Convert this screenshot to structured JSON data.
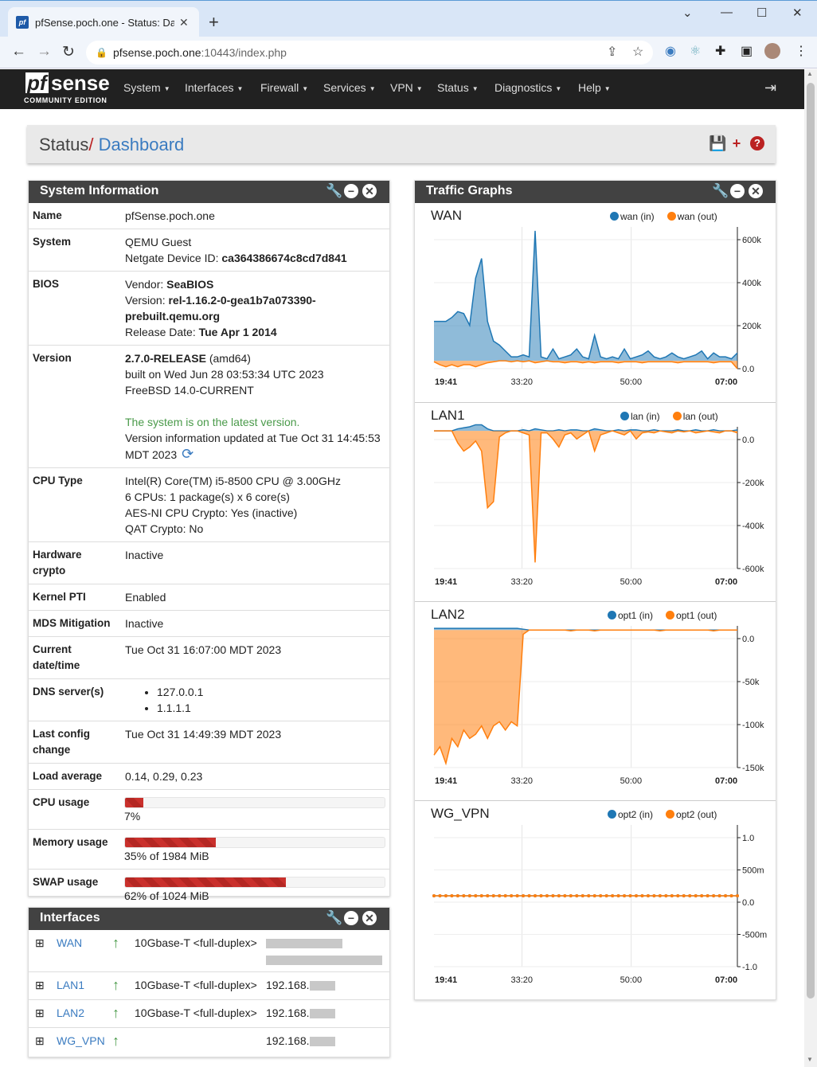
{
  "browser": {
    "tab_title": "pfSense.poch.one - Status: Dashb",
    "url_host": "pfsense.poch.one",
    "url_path": ":10443/index.php"
  },
  "nav": {
    "logo_pf": "pf",
    "logo_sense": "sense",
    "logo_edition": "COMMUNITY EDITION",
    "items": [
      "System",
      "Interfaces",
      "Firewall",
      "Services",
      "VPN",
      "Status",
      "Diagnostics",
      "Help"
    ]
  },
  "breadcrumb": {
    "section": "Status",
    "separator": "/",
    "page": "Dashboard"
  },
  "system_info": {
    "title": "System Information",
    "rows": {
      "name": {
        "key": "Name",
        "value": "pfSense.poch.one"
      },
      "system": {
        "key": "System",
        "line1": "QEMU Guest",
        "device_label": "Netgate Device ID:",
        "device_id": "ca364386674c8cd7d841"
      },
      "bios": {
        "key": "BIOS",
        "vendor_label": "Vendor:",
        "vendor": "SeaBIOS",
        "version_label": "Version:",
        "version_a": "rel-1.16.2-0-gea1b7a073390-",
        "version_b": "prebuilt.qemu.org",
        "date_label": "Release Date:",
        "date": "Tue Apr 1 2014"
      },
      "version": {
        "key": "Version",
        "release": "2.7.0-RELEASE",
        "arch": "(amd64)",
        "built": "built on Wed Jun 28 03:53:34 UTC 2023",
        "os": "FreeBSD 14.0-CURRENT",
        "status": "The system is on the latest version.",
        "updated_a": "Version information updated at Tue Oct 31 14:45:53",
        "updated_b": "MDT 2023"
      },
      "cpu_type": {
        "key": "CPU Type",
        "l1": "Intel(R) Core(TM) i5-8500 CPU @ 3.00GHz",
        "l2": "6 CPUs: 1 package(s) x 6 core(s)",
        "l3": "AES-NI CPU Crypto: Yes (inactive)",
        "l4": "QAT Crypto: No"
      },
      "hw_crypto": {
        "key_a": "Hardware",
        "key_b": "crypto",
        "value": "Inactive"
      },
      "kernel_pti": {
        "key": "Kernel PTI",
        "value": "Enabled"
      },
      "mds": {
        "key": "MDS Mitigation",
        "value": "Inactive"
      },
      "datetime": {
        "key_a": "Current",
        "key_b": "date/time",
        "value": "Tue Oct 31 16:07:00 MDT 2023"
      },
      "dns": {
        "key": "DNS server(s)",
        "servers": [
          "127.0.0.1",
          "1.1.1.1"
        ]
      },
      "last_config": {
        "key_a": "Last config",
        "key_b": "change",
        "value": "Tue Oct 31 14:49:39 MDT 2023"
      },
      "load": {
        "key": "Load average",
        "value": "0.14, 0.29, 0.23"
      },
      "cpu_usage": {
        "key": "CPU usage",
        "percent": 7,
        "label": "7%"
      },
      "memory": {
        "key": "Memory usage",
        "percent": 35,
        "label": "35% of 1984 MiB"
      },
      "swap": {
        "key": "SWAP usage",
        "percent": 62,
        "label": "62% of 1024 MiB"
      }
    }
  },
  "interfaces": {
    "title": "Interfaces",
    "rows": [
      {
        "name": "WAN",
        "media": "10Gbase-T <full-duplex>",
        "ip": ""
      },
      {
        "name": "LAN1",
        "media": "10Gbase-T <full-duplex>",
        "ip": "192.168."
      },
      {
        "name": "LAN2",
        "media": "10Gbase-T <full-duplex>",
        "ip": "192.168."
      },
      {
        "name": "WG_VPN",
        "media": "",
        "ip": "192.168."
      }
    ]
  },
  "traffic": {
    "title": "Traffic Graphs",
    "x_labels": [
      "19:41",
      "33:20",
      "50:00",
      "07:00"
    ],
    "colors": {
      "in": "#1f77b4",
      "out": "#ff7f0e"
    }
  },
  "chart_data": [
    {
      "type": "area",
      "title": "WAN",
      "series": [
        {
          "name": "wan (in)",
          "values": [
            200000,
            200000,
            200000,
            220000,
            250000,
            240000,
            180000,
            420000,
            520000,
            200000,
            100000,
            80000,
            50000,
            20000,
            20000,
            30000,
            20000,
            660000,
            20000,
            10000,
            60000,
            10000,
            20000,
            30000,
            60000,
            20000,
            10000,
            130000,
            20000,
            10000,
            20000,
            10000,
            60000,
            10000,
            20000,
            30000,
            50000,
            20000,
            10000,
            20000,
            40000,
            20000,
            10000,
            20000,
            30000,
            50000,
            10000,
            40000,
            20000,
            20000,
            10000,
            40000
          ]
        },
        {
          "name": "wan (out)",
          "values": [
            -5000,
            -20000,
            -30000,
            -20000,
            -30000,
            -20000,
            -20000,
            -30000,
            -20000,
            -10000,
            -5000,
            0,
            0,
            -5000,
            0,
            -5000,
            0,
            -10000,
            -5000,
            0,
            -5000,
            -5000,
            -10000,
            -5000,
            -5000,
            -10000,
            -5000,
            -10000,
            -5000,
            -5000,
            -5000,
            -10000,
            -5000,
            -5000,
            -5000,
            -10000,
            -5000,
            -5000,
            -5000,
            -5000,
            -5000,
            -10000,
            -5000,
            -5000,
            -5000,
            -5000,
            -5000,
            -10000,
            -5000,
            -5000,
            -5000,
            -40000
          ]
        }
      ],
      "y_ticks": [
        "600k",
        "400k",
        "200k",
        "0.0"
      ],
      "ylim": [
        -40000,
        680000
      ]
    },
    {
      "type": "area",
      "title": "LAN1",
      "series": [
        {
          "name": "lan (in)",
          "values": [
            0,
            0,
            0,
            0,
            10000,
            15000,
            20000,
            30000,
            30000,
            10000,
            0,
            0,
            0,
            0,
            0,
            5000,
            0,
            10000,
            5000,
            0,
            0,
            5000,
            0,
            5000,
            5000,
            0,
            0,
            10000,
            5000,
            0,
            0,
            5000,
            0,
            5000,
            5000,
            0,
            0,
            5000,
            0,
            0,
            0,
            5000,
            0,
            0,
            5000,
            0,
            0,
            5000,
            0,
            0,
            0,
            5000
          ]
        },
        {
          "name": "lan (out)",
          "values": [
            0,
            0,
            0,
            0,
            -60000,
            -100000,
            -80000,
            -50000,
            -100000,
            -380000,
            -350000,
            -30000,
            -10000,
            0,
            0,
            -10000,
            -20000,
            -650000,
            -10000,
            -10000,
            -40000,
            -80000,
            -20000,
            -10000,
            -40000,
            -20000,
            0,
            -100000,
            -20000,
            -10000,
            0,
            -10000,
            -20000,
            0,
            -40000,
            -10000,
            -5000,
            -10000,
            0,
            -5000,
            -10000,
            0,
            -5000,
            0,
            -10000,
            -5000,
            0,
            -5000,
            -10000,
            0,
            0,
            -10000
          ]
        }
      ],
      "y_ticks": [
        "0.0",
        "-200k",
        "-400k",
        "-600k"
      ],
      "ylim": [
        -680000,
        20000
      ]
    },
    {
      "type": "area",
      "title": "LAN2",
      "series": [
        {
          "name": "opt1 (in)",
          "values": [
            2000,
            2000,
            2000,
            2000,
            2000,
            2000,
            2000,
            2000,
            2000,
            2000,
            2000,
            2000,
            2000,
            2000,
            2000,
            1000,
            0,
            0,
            0,
            0,
            0,
            0,
            0,
            0,
            0,
            0,
            0,
            0,
            0,
            0,
            0,
            0,
            0,
            0,
            0,
            0,
            0,
            0,
            0,
            0,
            0,
            0,
            0,
            0,
            0,
            0,
            0,
            0,
            0,
            0,
            0,
            0
          ]
        },
        {
          "name": "opt1 (out)",
          "values": [
            -150000,
            -140000,
            -160000,
            -130000,
            -140000,
            -120000,
            -130000,
            -125000,
            -115000,
            -130000,
            -115000,
            -110000,
            -120000,
            -110000,
            -115000,
            -5000,
            0,
            0,
            0,
            0,
            0,
            0,
            0,
            -1000,
            0,
            0,
            0,
            -1000,
            0,
            0,
            0,
            0,
            0,
            0,
            0,
            0,
            0,
            0,
            -1000,
            0,
            0,
            0,
            0,
            0,
            0,
            0,
            0,
            -1000,
            0,
            0,
            0,
            0
          ]
        }
      ],
      "y_ticks": [
        "0.0",
        "-50k",
        "-100k",
        "-150k"
      ],
      "ylim": [
        -165000,
        5000
      ]
    },
    {
      "type": "line",
      "title": "WG_VPN",
      "series": [
        {
          "name": "opt2 (in)",
          "values": [
            0,
            0,
            0,
            0,
            0,
            0,
            0,
            0,
            0,
            0,
            0,
            0,
            0,
            0,
            0,
            0,
            0,
            0,
            0,
            0,
            0,
            0,
            0,
            0,
            0,
            0,
            0,
            0,
            0,
            0,
            0,
            0,
            0,
            0,
            0,
            0,
            0,
            0,
            0,
            0,
            0,
            0,
            0,
            0,
            0,
            0,
            0,
            0,
            0,
            0,
            0,
            0
          ]
        },
        {
          "name": "opt2 (out)",
          "values": [
            0,
            0,
            0,
            0,
            0,
            0,
            0,
            0,
            0,
            0,
            0,
            0,
            0,
            0,
            0,
            0,
            0,
            0,
            0,
            0,
            0,
            0,
            0,
            0,
            0,
            0,
            0,
            0,
            0,
            0,
            0,
            0,
            0,
            0,
            0,
            0,
            0,
            0,
            0,
            0,
            0,
            0,
            0,
            0,
            0,
            0,
            0,
            0,
            0,
            0,
            0,
            0
          ]
        }
      ],
      "y_ticks": [
        "1.0",
        "500m",
        "0.0",
        "-500m",
        "-1.0"
      ],
      "ylim": [
        -1,
        1
      ]
    }
  ]
}
